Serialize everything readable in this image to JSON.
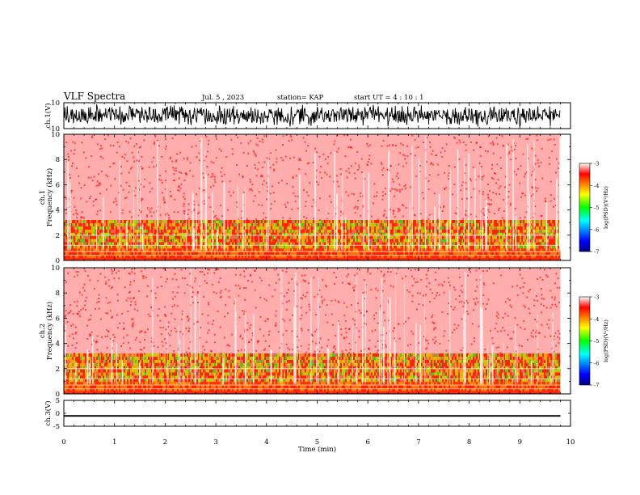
{
  "header": {
    "title": "VLF Spectra",
    "date": "Jul. 5 , 2023",
    "station": "station= KAP",
    "start": "start UT = 4 : 10 : 1"
  },
  "chart_data": [
    {
      "type": "line",
      "panel": "ch1-waveform",
      "ylabel": "ch.1(V)",
      "ylim": [
        -10,
        10
      ],
      "yticks": [
        "10",
        "-10"
      ],
      "xlim": [
        0,
        10
      ],
      "data_extent_min": 9.8,
      "description_values": "dense broadband waveform spanning roughly -8 to +8 V"
    },
    {
      "type": "heatmap",
      "panel": "ch1-spectrogram",
      "ylabel_lines": [
        "ch.1",
        "Frequency (kHz)"
      ],
      "ylim": [
        0,
        10
      ],
      "yticks": [
        "0",
        "2",
        "4",
        "6",
        "8",
        "10"
      ],
      "xlim": [
        0,
        10
      ],
      "colorbar": {
        "label": "log(PSD)(V²/Hz)",
        "range": [
          -7,
          -3
        ],
        "ticks": [
          "-3",
          "-4",
          "-5",
          "-6",
          "-7"
        ]
      }
    },
    {
      "type": "heatmap",
      "panel": "ch2-spectrogram",
      "ylabel_lines": [
        "ch.2",
        "Frequency (kHz)"
      ],
      "ylim": [
        0,
        10
      ],
      "yticks": [
        "0",
        "2",
        "4",
        "6",
        "8",
        "10"
      ],
      "xlim": [
        0,
        10
      ],
      "colorbar": {
        "label": "log(PSD)(V²/Hz)",
        "range": [
          -7,
          -3
        ],
        "ticks": [
          "-3",
          "-4",
          "-5",
          "-6",
          "-7"
        ]
      }
    },
    {
      "type": "line",
      "panel": "ch3-waveform",
      "ylabel": "ch.3(V)",
      "ylim": [
        -5,
        5
      ],
      "yticks": [
        "5",
        "0",
        "-5"
      ],
      "xlim": [
        0,
        10
      ],
      "xlabel": "Time (min)",
      "xticks": [
        "0",
        "1",
        "2",
        "3",
        "4",
        "5",
        "6",
        "7",
        "8",
        "9",
        "10"
      ],
      "level": -1,
      "band_halfwidth": 0.3
    }
  ]
}
